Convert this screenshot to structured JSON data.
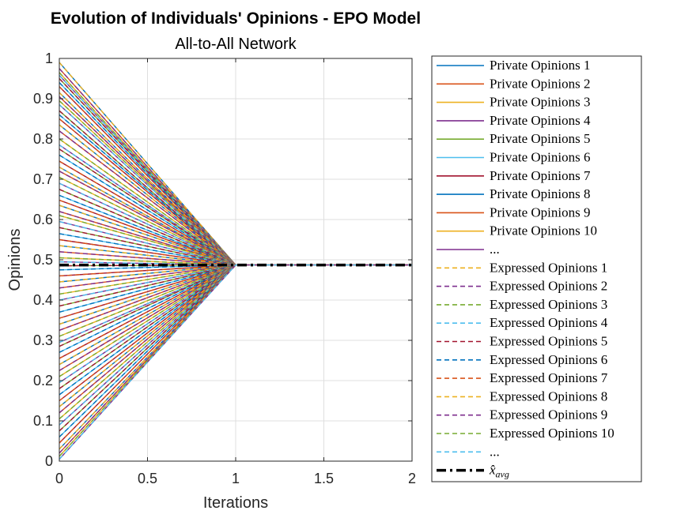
{
  "chart_data": {
    "type": "line",
    "title": "Evolution of Individuals' Opinions - EPO Model",
    "subtitle": "All-to-All Network",
    "xlabel": "Iterations",
    "ylabel": "Opinions",
    "xlim": [
      0,
      2
    ],
    "ylim": [
      0,
      1
    ],
    "xticks": [
      "0",
      "0.5",
      "1",
      "1.5",
      "2"
    ],
    "yticks": [
      "0",
      "0.1",
      "0.2",
      "0.3",
      "0.4",
      "0.5",
      "0.6",
      "0.7",
      "0.8",
      "0.9",
      "1"
    ],
    "grid": true,
    "legend_position": "outside-right",
    "consensus_value": 0.487,
    "x": [
      0,
      1,
      2
    ],
    "initial_opinions": [
      0.99,
      0.975,
      0.965,
      0.958,
      0.95,
      0.94,
      0.93,
      0.915,
      0.905,
      0.895,
      0.885,
      0.87,
      0.86,
      0.85,
      0.835,
      0.82,
      0.8,
      0.785,
      0.775,
      0.76,
      0.745,
      0.73,
      0.72,
      0.705,
      0.69,
      0.675,
      0.66,
      0.648,
      0.635,
      0.62,
      0.61,
      0.595,
      0.58,
      0.565,
      0.55,
      0.535,
      0.52,
      0.505,
      0.495,
      0.485,
      0.475,
      0.46,
      0.445,
      0.43,
      0.415,
      0.4,
      0.385,
      0.37,
      0.355,
      0.34,
      0.325,
      0.31,
      0.295,
      0.285,
      0.27,
      0.255,
      0.24,
      0.225,
      0.21,
      0.195,
      0.18,
      0.165,
      0.15,
      0.135,
      0.12,
      0.105,
      0.09,
      0.075,
      0.06,
      0.045,
      0.03,
      0.02,
      0.012,
      0.005
    ],
    "series_colors": [
      "#0072BD",
      "#D95319",
      "#EDB120",
      "#7E2F8E",
      "#77AC30",
      "#4DBEEE",
      "#A2142F"
    ],
    "avg_color": "#000000",
    "legend": [
      {
        "label": "Private Opinions 1",
        "color": "#0072BD",
        "style": "solid"
      },
      {
        "label": "Private Opinions 2",
        "color": "#D95319",
        "style": "solid"
      },
      {
        "label": "Private Opinions 3",
        "color": "#EDB120",
        "style": "solid"
      },
      {
        "label": "Private Opinions 4",
        "color": "#7E2F8E",
        "style": "solid"
      },
      {
        "label": "Private Opinions 5",
        "color": "#77AC30",
        "style": "solid"
      },
      {
        "label": "Private Opinions 6",
        "color": "#4DBEEE",
        "style": "solid"
      },
      {
        "label": "Private Opinions 7",
        "color": "#A2142F",
        "style": "solid"
      },
      {
        "label": "Private Opinions 8",
        "color": "#0072BD",
        "style": "solid"
      },
      {
        "label": "Private Opinions 9",
        "color": "#D95319",
        "style": "solid"
      },
      {
        "label": "Private Opinions 10",
        "color": "#EDB120",
        "style": "solid"
      },
      {
        "label": "...",
        "color": "#7E2F8E",
        "style": "solid"
      },
      {
        "label": "Expressed Opinions 1",
        "color": "#EDB120",
        "style": "dashed"
      },
      {
        "label": "Expressed Opinions 2",
        "color": "#7E2F8E",
        "style": "dashed"
      },
      {
        "label": "Expressed Opinions 3",
        "color": "#77AC30",
        "style": "dashed"
      },
      {
        "label": "Expressed Opinions 4",
        "color": "#4DBEEE",
        "style": "dashed"
      },
      {
        "label": "Expressed Opinions 5",
        "color": "#A2142F",
        "style": "dashed"
      },
      {
        "label": "Expressed Opinions 6",
        "color": "#0072BD",
        "style": "dashed"
      },
      {
        "label": "Expressed Opinions 7",
        "color": "#D95319",
        "style": "dashed"
      },
      {
        "label": "Expressed Opinions 8",
        "color": "#EDB120",
        "style": "dashed"
      },
      {
        "label": "Expressed Opinions 9",
        "color": "#7E2F8E",
        "style": "dashed"
      },
      {
        "label": "Expressed Opinions 10",
        "color": "#77AC30",
        "style": "dashed"
      },
      {
        "label": "...",
        "color": "#4DBEEE",
        "style": "dashed"
      },
      {
        "label": "x̂avg",
        "color": "#000000",
        "style": "dashdot"
      }
    ]
  }
}
